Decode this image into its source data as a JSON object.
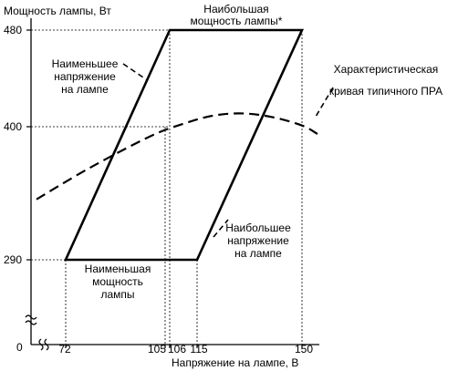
{
  "chart_data": {
    "type": "diagram",
    "y_axis": {
      "label": "Мощность лампы, Вт",
      "ticks": [
        {
          "value": 480,
          "label": "480"
        },
        {
          "value": 400,
          "label": "400"
        },
        {
          "value": 290,
          "label": "290"
        }
      ],
      "origin_label": "0",
      "axis_break": true
    },
    "x_axis": {
      "label": "Напряжение на лампе, В",
      "ticks": [
        {
          "value": 72,
          "label": "72"
        },
        {
          "value": 105,
          "label": "105"
        },
        {
          "value": 106,
          "label": "106"
        },
        {
          "value": 115,
          "label": "115"
        },
        {
          "value": 150,
          "label": "150"
        }
      ],
      "axis_break": true
    },
    "operating_region": {
      "style": "solid",
      "points": [
        {
          "x": 72,
          "y": 290
        },
        {
          "x": 115,
          "y": 290
        },
        {
          "x": 150,
          "y": 480
        },
        {
          "x": 106,
          "y": 480
        }
      ]
    },
    "ballast_curve": {
      "style": "dashed",
      "points": [
        {
          "x": 62,
          "y": 340
        },
        {
          "x": 80,
          "y": 366
        },
        {
          "x": 100,
          "y": 392
        },
        {
          "x": 110,
          "y": 402
        },
        {
          "x": 120,
          "y": 409
        },
        {
          "x": 130,
          "y": 411
        },
        {
          "x": 140,
          "y": 408
        },
        {
          "x": 150,
          "y": 401
        },
        {
          "x": 158,
          "y": 394
        }
      ]
    },
    "annotations": {
      "max_power": {
        "lines": [
          "Наибольшая",
          "мощность лампы*"
        ]
      },
      "min_voltage": {
        "lines": [
          "Наименьшее",
          "напряжение",
          "на лампе"
        ]
      },
      "ballast_curve": {
        "lines": [
          "Характеристическая",
          "кривая типичного ПРА"
        ]
      },
      "max_voltage": {
        "lines": [
          "Наибольшее",
          "напряжение",
          "на лампе"
        ]
      },
      "min_power": {
        "lines": [
          "Наименьшая",
          "мощность",
          "лампы"
        ]
      }
    },
    "grid": false
  }
}
